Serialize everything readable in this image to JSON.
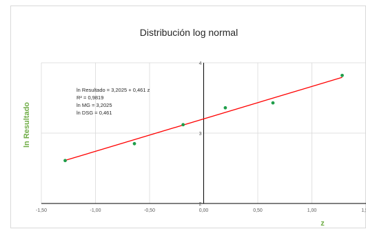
{
  "colors": {
    "points": "#1f9e4a",
    "trendline": "#ff0000",
    "axis_title": "#70ad47",
    "grid": "#d9d9d9",
    "axis": "#000000"
  },
  "chart_data": {
    "type": "scatter",
    "title": "Distribución log normal",
    "xlabel": "z",
    "ylabel": "ln Resultado",
    "xlim": [
      -1.5,
      1.5
    ],
    "ylim": [
      2,
      4
    ],
    "x_ticks": [
      -1.5,
      -1.0,
      -0.5,
      0.0,
      0.5,
      1.0,
      1.5
    ],
    "x_tick_labels": [
      "-1,50",
      "-1,00",
      "-0,50",
      "0,00",
      "0,50",
      "1,00",
      "1,50"
    ],
    "y_ticks": [
      2,
      3,
      4
    ],
    "y_tick_labels": [
      "2",
      "3",
      "4"
    ],
    "grid": true,
    "series": [
      {
        "x": [
          -1.28,
          -0.64,
          -0.19,
          0.2,
          0.64,
          1.28
        ],
        "y": [
          2.61,
          2.85,
          3.12,
          3.36,
          3.43,
          3.82
        ]
      }
    ],
    "trendline": {
      "intercept": 3.2025,
      "slope": 0.461,
      "x_range": [
        -1.28,
        1.28
      ]
    },
    "annotations": [
      "ln Resultado = 3,2025 + 0,461 z",
      "R² = 0,9819",
      "ln MG = 3,2025",
      "ln DSG = 0,461"
    ]
  }
}
